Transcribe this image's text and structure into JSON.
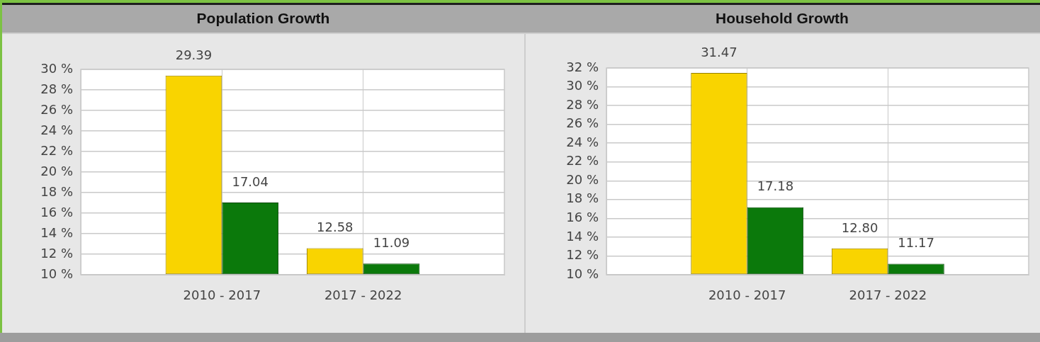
{
  "chart_data": [
    {
      "type": "bar",
      "title": "Population Growth",
      "categories": [
        "2010 - 2017",
        "2017 - 2022"
      ],
      "series": [
        {
          "color": "#f9d400",
          "values": [
            29.39,
            12.58
          ],
          "value_labels": [
            "29.39",
            "12.58"
          ]
        },
        {
          "color": "#0b790b",
          "values": [
            17.04,
            11.09
          ],
          "value_labels": [
            "17.04",
            "11.09"
          ]
        }
      ],
      "ylim": [
        10,
        30
      ],
      "yticks": [
        {
          "value": 10,
          "label": "10 %"
        },
        {
          "value": 12,
          "label": "12 %"
        },
        {
          "value": 14,
          "label": "14 %"
        },
        {
          "value": 16,
          "label": "16 %"
        },
        {
          "value": 18,
          "label": "18 %"
        },
        {
          "value": 20,
          "label": "20 %"
        },
        {
          "value": 22,
          "label": "22 %"
        },
        {
          "value": 24,
          "label": "24 %"
        },
        {
          "value": 26,
          "label": "26 %"
        },
        {
          "value": 28,
          "label": "28 %"
        },
        {
          "value": 30,
          "label": "30 %"
        }
      ],
      "grid": true
    },
    {
      "type": "bar",
      "title": "Household Growth",
      "categories": [
        "2010 - 2017",
        "2017 - 2022"
      ],
      "series": [
        {
          "color": "#f9d400",
          "values": [
            31.47,
            12.8
          ],
          "value_labels": [
            "31.47",
            "12.80"
          ]
        },
        {
          "color": "#0b790b",
          "values": [
            17.18,
            11.17
          ],
          "value_labels": [
            "17.18",
            "11.17"
          ]
        }
      ],
      "ylim": [
        10,
        32
      ],
      "yticks": [
        {
          "value": 10,
          "label": "10 %"
        },
        {
          "value": 12,
          "label": "12 %"
        },
        {
          "value": 14,
          "label": "14 %"
        },
        {
          "value": 16,
          "label": "16 %"
        },
        {
          "value": 18,
          "label": "18 %"
        },
        {
          "value": 20,
          "label": "20 %"
        },
        {
          "value": 22,
          "label": "22 %"
        },
        {
          "value": 24,
          "label": "24 %"
        },
        {
          "value": 26,
          "label": "26 %"
        },
        {
          "value": 28,
          "label": "28 %"
        },
        {
          "value": 30,
          "label": "30 %"
        },
        {
          "value": 32,
          "label": "32 %"
        }
      ],
      "grid": true
    }
  ]
}
